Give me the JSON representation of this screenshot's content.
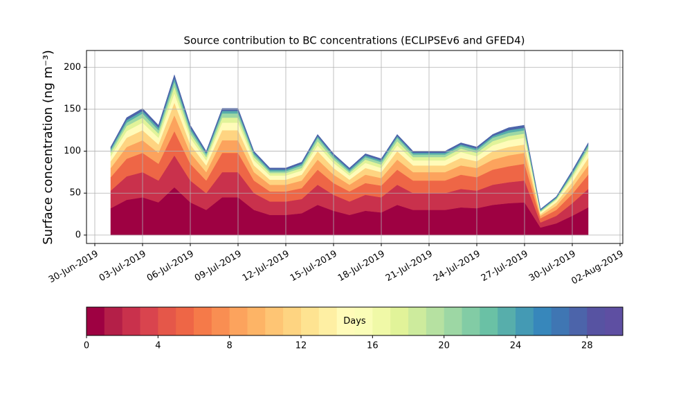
{
  "chart_data": {
    "type": "stacked-area",
    "title": "Source contribution to BC concentrations (ECLIPSEv6 and GFED4)",
    "y_label": "Surface concentration (ng m⁻³)",
    "x": [
      "01-Jul-2019",
      "02-Jul-2019",
      "03-Jul-2019",
      "04-Jul-2019",
      "05-Jul-2019",
      "06-Jul-2019",
      "07-Jul-2019",
      "08-Jul-2019",
      "09-Jul-2019",
      "10-Jul-2019",
      "11-Jul-2019",
      "12-Jul-2019",
      "13-Jul-2019",
      "14-Jul-2019",
      "15-Jul-2019",
      "16-Jul-2019",
      "17-Jul-2019",
      "18-Jul-2019",
      "19-Jul-2019",
      "20-Jul-2019",
      "21-Jul-2019",
      "22-Jul-2019",
      "23-Jul-2019",
      "24-Jul-2019",
      "25-Jul-2019",
      "26-Jul-2019",
      "27-Jul-2019",
      "28-Jul-2019",
      "29-Jul-2019",
      "30-Jul-2019",
      "31-Jul-2019"
    ],
    "series": [
      {
        "color": "#9e0142",
        "values": [
          32,
          42,
          45,
          39,
          57,
          39,
          30,
          45,
          45,
          30,
          24,
          24,
          26,
          36,
          29,
          24,
          29,
          27,
          36,
          30,
          30,
          30,
          33,
          32,
          36,
          38,
          39,
          9,
          14,
          23,
          33
        ]
      },
      {
        "color": "#c9314c",
        "values": [
          21,
          28,
          30,
          26,
          38,
          26,
          20,
          30,
          30,
          20,
          16,
          16,
          17,
          24,
          19,
          16,
          19,
          18,
          24,
          20,
          20,
          20,
          22,
          21,
          24,
          25,
          26,
          6,
          9,
          15,
          22
        ]
      },
      {
        "color": "#ee6646",
        "values": [
          16,
          21,
          23,
          20,
          29,
          20,
          15,
          23,
          23,
          15,
          12,
          12,
          13,
          18,
          14,
          12,
          14,
          14,
          18,
          15,
          15,
          15,
          17,
          16,
          18,
          19,
          20,
          5,
          7,
          11,
          17
        ]
      },
      {
        "color": "#fca35d",
        "values": [
          11,
          14,
          15,
          13,
          19,
          13,
          10,
          15,
          15,
          10,
          8,
          8,
          9,
          12,
          10,
          8,
          10,
          9,
          12,
          10,
          10,
          10,
          11,
          11,
          12,
          13,
          13,
          3,
          5,
          8,
          11
        ]
      },
      {
        "color": "#fed481",
        "values": [
          8,
          11,
          12,
          10,
          15,
          10,
          8,
          12,
          12,
          8,
          6,
          6,
          7,
          10,
          8,
          6,
          8,
          7,
          10,
          8,
          8,
          8,
          9,
          8,
          10,
          10,
          10,
          2,
          4,
          6,
          9
        ]
      },
      {
        "color": "#fffbb9",
        "values": [
          6,
          8,
          9,
          8,
          11,
          8,
          6,
          9,
          9,
          6,
          5,
          5,
          5,
          7,
          6,
          5,
          6,
          5,
          7,
          6,
          6,
          6,
          7,
          6,
          7,
          8,
          8,
          2,
          3,
          5,
          7
        ]
      },
      {
        "color": "#e1f399",
        "values": [
          4,
          6,
          6,
          5,
          8,
          5,
          4,
          6,
          6,
          4,
          3,
          3,
          3,
          5,
          4,
          3,
          4,
          4,
          5,
          4,
          4,
          4,
          4,
          4,
          5,
          5,
          5,
          1,
          1,
          3,
          4
        ]
      },
      {
        "color": "#9dd7a4",
        "values": [
          3,
          4,
          5,
          4,
          6,
          4,
          3,
          5,
          5,
          3,
          2,
          2,
          3,
          4,
          3,
          2,
          3,
          3,
          4,
          3,
          3,
          3,
          3,
          3,
          4,
          4,
          4,
          1,
          1,
          2,
          3
        ]
      },
      {
        "color": "#57aeab",
        "values": [
          2,
          3,
          3,
          3,
          4,
          3,
          2,
          3,
          3,
          2,
          2,
          2,
          2,
          2,
          2,
          2,
          2,
          2,
          2,
          2,
          2,
          2,
          2,
          2,
          2,
          3,
          3,
          1,
          1,
          2,
          2
        ]
      },
      {
        "color": "#4c64aa",
        "values": [
          2,
          3,
          3,
          3,
          4,
          3,
          2,
          3,
          3,
          2,
          2,
          2,
          2,
          2,
          2,
          2,
          2,
          2,
          2,
          2,
          2,
          2,
          2,
          2,
          2,
          3,
          3,
          1,
          1,
          2,
          2
        ]
      }
    ],
    "xlim": [
      "30-Jun-2019",
      "02-Aug-2019"
    ],
    "xticks": [
      "30-Jun-2019",
      "03-Jul-2019",
      "06-Jul-2019",
      "09-Jul-2019",
      "12-Jul-2019",
      "15-Jul-2019",
      "18-Jul-2019",
      "21-Jul-2019",
      "24-Jul-2019",
      "27-Jul-2019",
      "30-Jul-2019",
      "02-Aug-2019"
    ],
    "ylim": [
      -10,
      220
    ],
    "yticks": [
      0,
      50,
      100,
      150,
      200
    ],
    "grid": true,
    "colorbar": {
      "label": "Days",
      "lim": [
        0,
        30
      ],
      "ticks": [
        0,
        4,
        8,
        12,
        16,
        20,
        24,
        28
      ],
      "colors": [
        "#9e0142",
        "#b41f48",
        "#c9314c",
        "#d9444e",
        "#e55749",
        "#ee6646",
        "#f57a49",
        "#f98e52",
        "#fca35d",
        "#fdb466",
        "#fec574",
        "#fed481",
        "#fee391",
        "#feefa3",
        "#fffbb9",
        "#fafdb7",
        "#f0f9a7",
        "#e1f399",
        "#cdeb9d",
        "#b6e1a1",
        "#9dd7a4",
        "#82cca5",
        "#6ac1a5",
        "#57aeab",
        "#449ab4",
        "#3787bb",
        "#3f76b3",
        "#4c64aa",
        "#5753a2",
        "#5e4fa2"
      ]
    }
  }
}
